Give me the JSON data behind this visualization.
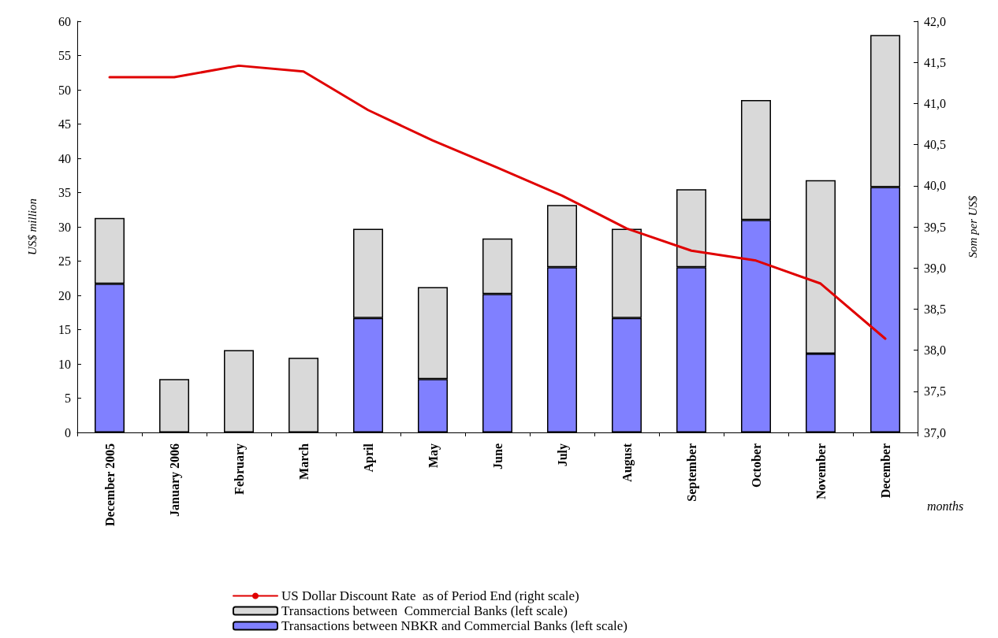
{
  "chart_data": {
    "type": "bar",
    "stacked": true,
    "xlabel": "months",
    "ylabel": "US$ million",
    "y2label": "Som per US$",
    "categories": [
      "December 2005",
      "January 2006",
      "February",
      "March",
      "April",
      "May",
      "June",
      "July",
      "August",
      "September",
      "October",
      "November",
      "December"
    ],
    "series": [
      {
        "name": "Transactions between NBKR and Commercial Banks (left scale)",
        "color": "#8080ff",
        "values": [
          21.7,
          0,
          0,
          0,
          16.7,
          7.8,
          20.2,
          24.1,
          16.7,
          24.1,
          31.0,
          11.5,
          35.8
        ]
      },
      {
        "name": "Transactions between  Commercial Banks (left scale)",
        "color": "#d9d9d9",
        "values": [
          9.6,
          7.8,
          12.0,
          10.9,
          13.0,
          13.4,
          8.1,
          9.1,
          13.0,
          11.4,
          17.5,
          25.3,
          22.2
        ]
      },
      {
        "name": "US Dollar Discount Rate  as of Period End (right scale)",
        "type": "line",
        "axis": "y2",
        "color": "#e00000",
        "values": [
          41.32,
          41.32,
          41.46,
          41.39,
          40.92,
          40.55,
          40.22,
          39.88,
          39.48,
          39.21,
          39.09,
          38.81,
          38.14
        ]
      }
    ],
    "ylim": [
      0,
      60
    ],
    "yticks": [
      0,
      5,
      10,
      15,
      20,
      25,
      30,
      35,
      40,
      45,
      50,
      55,
      60
    ],
    "y2lim": [
      37,
      42
    ],
    "y2ticks": [
      {
        "value": 37,
        "label": "37,0"
      },
      {
        "value": 37.5,
        "label": "37,5"
      },
      {
        "value": 38,
        "label": "38,0"
      },
      {
        "value": 38.5,
        "label": "38,5"
      },
      {
        "value": 39,
        "label": "39,0"
      },
      {
        "value": 39.5,
        "label": "39,5"
      },
      {
        "value": 40,
        "label": "40,0"
      },
      {
        "value": 40.5,
        "label": "40,5"
      },
      {
        "value": 41,
        "label": "41,0"
      },
      {
        "value": 41.5,
        "label": "41,5"
      },
      {
        "value": 42,
        "label": "42,0"
      }
    ],
    "grid": false,
    "legend": "bottom",
    "marker": "none",
    "line_style": "solid"
  }
}
